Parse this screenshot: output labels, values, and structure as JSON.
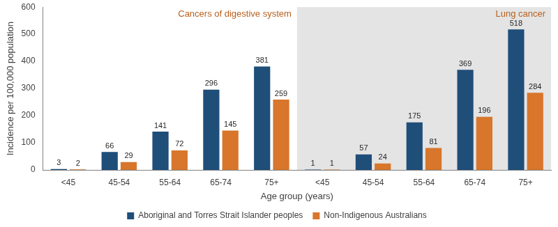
{
  "chart_data": {
    "type": "bar",
    "categories": [
      "<45",
      "45-54",
      "55-64",
      "65-74",
      "75+",
      "<45",
      "45-54",
      "55-64",
      "65-74",
      "75+"
    ],
    "series": [
      {
        "name": "Aboriginal and Torres Strait Islander peoples",
        "color": "#1f4e79",
        "values": [
          3,
          66,
          141,
          296,
          381,
          1,
          57,
          175,
          369,
          518
        ]
      },
      {
        "name": "Non-Indigenous Australians",
        "color": "#d8762b",
        "values": [
          2,
          29,
          72,
          145,
          259,
          1,
          24,
          81,
          196,
          284
        ]
      }
    ],
    "annotations": [
      "Cancers of digestive system",
      "Lung cancer"
    ],
    "x_label": "Age group (years)",
    "y_label": "Incidence per 100,000 population",
    "ylim": [
      0,
      600
    ],
    "yticks": [
      0,
      100,
      200,
      300,
      400,
      500,
      600
    ],
    "grid": false,
    "legend": "bottom",
    "data_labels": true
  }
}
